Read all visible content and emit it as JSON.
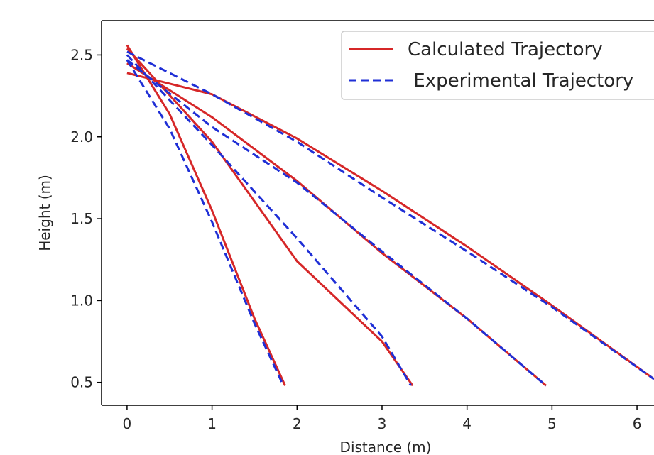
{
  "chart_data": {
    "type": "line",
    "xlabel": "Distance (m)",
    "ylabel": "Height (m)",
    "xlim": [
      -0.3,
      6.2
    ],
    "ylim": [
      0.36,
      2.71
    ],
    "xticks": [
      0,
      1,
      2,
      3,
      4,
      5,
      6
    ],
    "yticks": [
      0.5,
      1.0,
      1.5,
      2.0,
      2.5
    ],
    "xtick_labels": [
      "0",
      "1",
      "2",
      "3",
      "4",
      "5",
      "6"
    ],
    "ytick_labels": [
      "0.5",
      "1.0",
      "1.5",
      "2.0",
      "2.5"
    ],
    "grid": false,
    "legend_position": "top-right",
    "legend": [
      {
        "label": "Calculated Trajectory",
        "color": "#d62728",
        "style": "solid"
      },
      {
        "label": " Experimental Trajectory",
        "color": "#1f2fd6",
        "style": "dashed"
      }
    ],
    "series": [
      {
        "group": "Calculated Trajectory",
        "color": "#d62728",
        "style": "solid",
        "trajectory": 1,
        "x": [
          0.0,
          0.5,
          1.0,
          1.5,
          1.86
        ],
        "y": [
          2.56,
          2.14,
          1.55,
          0.89,
          0.48
        ]
      },
      {
        "group": "Calculated Trajectory",
        "color": "#d62728",
        "style": "solid",
        "trajectory": 2,
        "x": [
          0.0,
          1.0,
          2.0,
          3.0,
          3.36
        ],
        "y": [
          2.54,
          1.97,
          1.24,
          0.75,
          0.48
        ]
      },
      {
        "group": "Calculated Trajectory",
        "color": "#d62728",
        "style": "solid",
        "trajectory": 3,
        "x": [
          0.0,
          1.0,
          2.0,
          3.0,
          4.0,
          4.93
        ],
        "y": [
          2.45,
          2.12,
          1.73,
          1.29,
          0.89,
          0.48
        ]
      },
      {
        "group": "Calculated Trajectory",
        "color": "#d62728",
        "style": "solid",
        "trajectory": 4,
        "x": [
          0.0,
          1.0,
          2.0,
          3.0,
          4.0,
          5.0,
          6.2
        ],
        "y": [
          2.39,
          2.26,
          1.99,
          1.67,
          1.33,
          0.97,
          0.52
        ]
      },
      {
        "group": "Experimental Trajectory",
        "color": "#1f2fd6",
        "style": "dashed",
        "trajectory": 1,
        "x": [
          0.0,
          0.5,
          1.0,
          1.5,
          1.84
        ],
        "y": [
          2.47,
          2.05,
          1.48,
          0.86,
          0.48
        ]
      },
      {
        "group": "Experimental Trajectory",
        "color": "#1f2fd6",
        "style": "dashed",
        "trajectory": 2,
        "x": [
          0.0,
          1.0,
          2.0,
          3.0,
          3.34
        ],
        "y": [
          2.5,
          1.95,
          1.38,
          0.78,
          0.48
        ]
      },
      {
        "group": "Experimental Trajectory",
        "color": "#1f2fd6",
        "style": "dashed",
        "trajectory": 3,
        "x": [
          0.0,
          1.0,
          2.0,
          3.0,
          4.0,
          4.93
        ],
        "y": [
          2.47,
          2.06,
          1.72,
          1.3,
          0.89,
          0.48
        ]
      },
      {
        "group": "Experimental Trajectory",
        "color": "#1f2fd6",
        "style": "dashed",
        "trajectory": 4,
        "x": [
          0.0,
          1.0,
          2.0,
          3.0,
          4.0,
          5.0,
          6.2
        ],
        "y": [
          2.52,
          2.26,
          1.97,
          1.63,
          1.3,
          0.96,
          0.52
        ]
      }
    ]
  }
}
